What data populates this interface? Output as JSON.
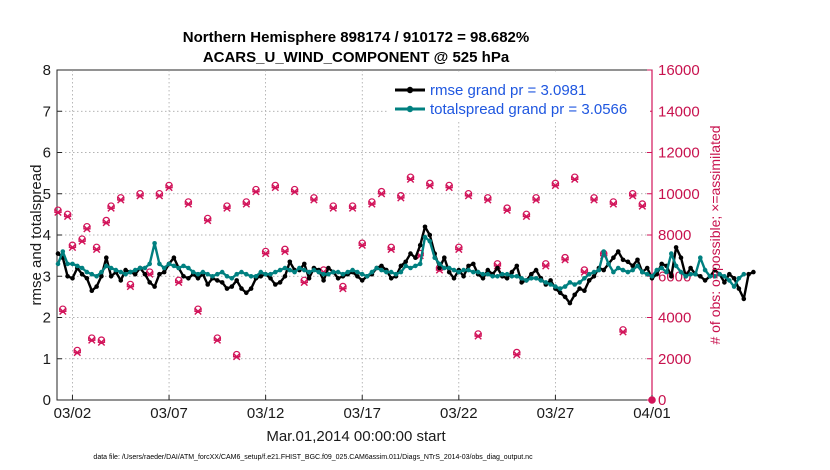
{
  "chart_data": {
    "type": "line",
    "title": "Northern Hemisphere 898174 / 910172 = 98.682%",
    "subtitle": "ACARS_U_WIND_COMPONENT @ 525 hPa",
    "xlabel": "Mar.01,2014 00:00:00 start",
    "ylabel": "rmse and totalspread",
    "ylabel_right": "# of obs: o=possible; ×=assimilated",
    "footer": "data file: /Users/raeder/DAI/ATM_forcXX/CAM6_setup/f.e21.FHIST_BGC.f09_025.CAM6assim.011/Diags_NTrS_2014-03/obs_diag_output.nc",
    "x_tick_labels": [
      "03/02",
      "03/07",
      "03/12",
      "03/17",
      "03/22",
      "03/27",
      "04/01"
    ],
    "x_tick_days": [
      1,
      6,
      11,
      16,
      21,
      26,
      31
    ],
    "xlim": [
      0.2,
      31.0
    ],
    "ylim": [
      0,
      8
    ],
    "y_ticks": [
      "0",
      "1",
      "2",
      "3",
      "4",
      "5",
      "6",
      "7",
      "8"
    ],
    "ylim_right": [
      0,
      16000
    ],
    "y_ticks_right": [
      "0",
      "2000",
      "4000",
      "6000",
      "8000",
      "10000",
      "12000",
      "14000",
      "16000"
    ],
    "legend_position": "top-right",
    "colors": {
      "rmse": "#000000",
      "spread": "#008080",
      "obs": "#d2145a",
      "legend_text": "#1f57e0",
      "axis": "#262626"
    },
    "series": [
      {
        "name": "rmse grand pr = 3.0981",
        "x_start": 0.25,
        "x_step": 0.25,
        "values": [
          3.55,
          3.45,
          3.0,
          2.95,
          3.2,
          3.05,
          2.95,
          2.65,
          2.75,
          3.0,
          3.45,
          3.0,
          3.1,
          2.9,
          3.15,
          3.1,
          3.05,
          3.2,
          3.05,
          2.85,
          2.75,
          3.05,
          3.1,
          3.3,
          3.45,
          3.2,
          3.0,
          2.95,
          3.05,
          2.95,
          3.05,
          2.8,
          2.95,
          2.9,
          2.85,
          2.7,
          2.75,
          2.9,
          2.7,
          2.6,
          2.7,
          2.95,
          3.0,
          3.05,
          2.95,
          2.8,
          2.85,
          3.0,
          3.35,
          3.15,
          3.15,
          3.3,
          2.95,
          3.2,
          3.15,
          2.9,
          3.2,
          3.1,
          2.95,
          3.0,
          3.05,
          3.1,
          3.0,
          2.9,
          3.0,
          3.05,
          3.2,
          3.25,
          3.15,
          2.95,
          3.0,
          3.25,
          3.35,
          3.55,
          3.45,
          3.75,
          4.2,
          4.0,
          3.55,
          3.2,
          3.45,
          3.1,
          2.95,
          3.15,
          3.0,
          3.25,
          3.3,
          3.05,
          2.95,
          3.15,
          3.05,
          3.2,
          3.0,
          2.95,
          3.1,
          3.25,
          2.85,
          2.9,
          3.05,
          3.15,
          2.95,
          2.8,
          2.9,
          2.7,
          2.6,
          2.5,
          2.35,
          2.55,
          2.7,
          2.65,
          2.9,
          3.0,
          3.2,
          3.15,
          3.3,
          3.45,
          3.6,
          3.4,
          3.35,
          3.25,
          3.4,
          3.1,
          3.2,
          2.95,
          3.05,
          3.3,
          3.25,
          3.0,
          3.7,
          3.45,
          3.0,
          3.2,
          3.05,
          3.0,
          2.9,
          3.0,
          3.15,
          3.05,
          2.85,
          3.05,
          2.95,
          2.7,
          2.45,
          3.05,
          3.1
        ]
      },
      {
        "name": "totalspread grand pr = 3.0566",
        "x_start": 0.25,
        "x_step": 0.25,
        "values": [
          3.3,
          3.6,
          3.3,
          3.3,
          3.25,
          3.2,
          3.1,
          3.05,
          3.0,
          3.1,
          3.25,
          3.2,
          3.15,
          3.1,
          3.05,
          3.1,
          3.15,
          3.2,
          3.2,
          3.3,
          3.8,
          3.3,
          3.2,
          3.3,
          3.25,
          3.2,
          3.25,
          3.2,
          3.1,
          3.05,
          3.1,
          3.05,
          3.0,
          3.05,
          3.1,
          3.0,
          2.95,
          3.05,
          3.1,
          3.05,
          3.0,
          3.0,
          3.1,
          3.05,
          3.05,
          3.1,
          3.15,
          3.2,
          3.15,
          3.1,
          3.2,
          3.15,
          3.1,
          3.15,
          3.1,
          3.05,
          3.05,
          3.1,
          3.1,
          3.05,
          3.1,
          3.15,
          3.1,
          3.05,
          3.0,
          3.1,
          3.2,
          3.15,
          3.1,
          3.1,
          3.05,
          3.1,
          3.25,
          3.2,
          3.25,
          3.3,
          3.95,
          3.85,
          3.45,
          3.3,
          3.2,
          3.2,
          3.15,
          3.1,
          3.15,
          3.15,
          3.1,
          3.1,
          3.05,
          3.05,
          3.0,
          3.0,
          3.05,
          3.05,
          3.0,
          3.0,
          2.95,
          2.9,
          2.95,
          2.95,
          2.9,
          2.85,
          2.8,
          2.75,
          2.7,
          2.75,
          2.85,
          2.8,
          2.85,
          2.95,
          3.05,
          3.1,
          3.15,
          3.6,
          3.3,
          3.1,
          3.2,
          3.15,
          3.1,
          3.15,
          3.25,
          3.1,
          3.05,
          3.0,
          3.15,
          3.2,
          3.1,
          3.55,
          3.25,
          3.1,
          3.0,
          3.05,
          3.05,
          3.45,
          3.15,
          3.0,
          3.0,
          3.05,
          3.0,
          2.9,
          2.75,
          2.95,
          3.05
        ]
      }
    ],
    "obs_possible": {
      "x": [
        0.25,
        0.5,
        0.75,
        1.0,
        1.25,
        1.5,
        1.75,
        2.0,
        2.25,
        2.5,
        2.75,
        3.0,
        3.5,
        4.0,
        4.5,
        5.0,
        5.5,
        6.0,
        6.5,
        7.0,
        7.5,
        8.0,
        8.5,
        9.0,
        9.5,
        10.0,
        10.5,
        11.0,
        11.5,
        12.0,
        12.5,
        13.0,
        13.5,
        14.0,
        14.5,
        15.0,
        15.5,
        16.0,
        16.5,
        17.0,
        17.5,
        18.0,
        18.5,
        19.0,
        19.5,
        20.0,
        20.5,
        21.0,
        21.5,
        22.0,
        22.5,
        23.0,
        23.5,
        24.0,
        24.5,
        25.0,
        25.5,
        26.0,
        26.5,
        27.0,
        27.5,
        28.0,
        28.5,
        29.0,
        29.5,
        30.0,
        30.5
      ],
      "values": [
        9200,
        4400,
        9000,
        7500,
        2400,
        7800,
        8400,
        3000,
        7400,
        2900,
        8700,
        9400,
        9800,
        5600,
        10000,
        6200,
        10000,
        10400,
        5800,
        9600,
        4400,
        8800,
        3000,
        9400,
        2200,
        9600,
        10200,
        7200,
        10400,
        7300,
        10200,
        5800,
        9800,
        6300,
        9400,
        5500,
        9400,
        7600,
        9600,
        10100,
        7400,
        9900,
        10800,
        7100,
        10500,
        6400,
        10400,
        7400,
        10000,
        3200,
        9800,
        6600,
        9300,
        2300,
        9000,
        9800,
        6600,
        10500,
        6900,
        10800,
        6300,
        9800,
        7100,
        9600,
        3400,
        10000,
        9500
      ],
      "last_value": 0
    },
    "obs_assimilated": {
      "x": [
        0.25,
        0.5,
        0.75,
        1.0,
        1.25,
        1.5,
        1.75,
        2.0,
        2.25,
        2.5,
        2.75,
        3.0,
        3.5,
        4.0,
        4.5,
        5.0,
        5.5,
        6.0,
        6.5,
        7.0,
        7.5,
        8.0,
        8.5,
        9.0,
        9.5,
        10.0,
        10.5,
        11.0,
        11.5,
        12.0,
        12.5,
        13.0,
        13.5,
        14.0,
        14.5,
        15.0,
        15.5,
        16.0,
        16.5,
        17.0,
        17.5,
        18.0,
        18.5,
        19.0,
        19.5,
        20.0,
        20.5,
        21.0,
        21.5,
        22.0,
        22.5,
        23.0,
        23.5,
        24.0,
        24.5,
        25.0,
        25.5,
        26.0,
        26.5,
        27.0,
        27.5,
        28.0,
        28.5,
        29.0,
        29.5,
        30.0,
        30.5
      ],
      "values": [
        9100,
        4300,
        8900,
        7400,
        2300,
        7700,
        8300,
        2900,
        7300,
        2800,
        8600,
        9300,
        9700,
        5500,
        9900,
        6100,
        9900,
        10300,
        5700,
        9500,
        4300,
        8700,
        2900,
        9300,
        2100,
        9500,
        10100,
        7100,
        10300,
        7200,
        10100,
        5700,
        9700,
        6200,
        9300,
        5400,
        9300,
        7500,
        9500,
        10000,
        7300,
        9800,
        10700,
        7000,
        10400,
        6300,
        10300,
        7300,
        9900,
        3100,
        9700,
        6500,
        9200,
        2200,
        8900,
        9700,
        6500,
        10400,
        6800,
        10700,
        6200,
        9700,
        7000,
        9500,
        3300,
        9900,
        9400
      ],
      "last_value": 0
    }
  }
}
